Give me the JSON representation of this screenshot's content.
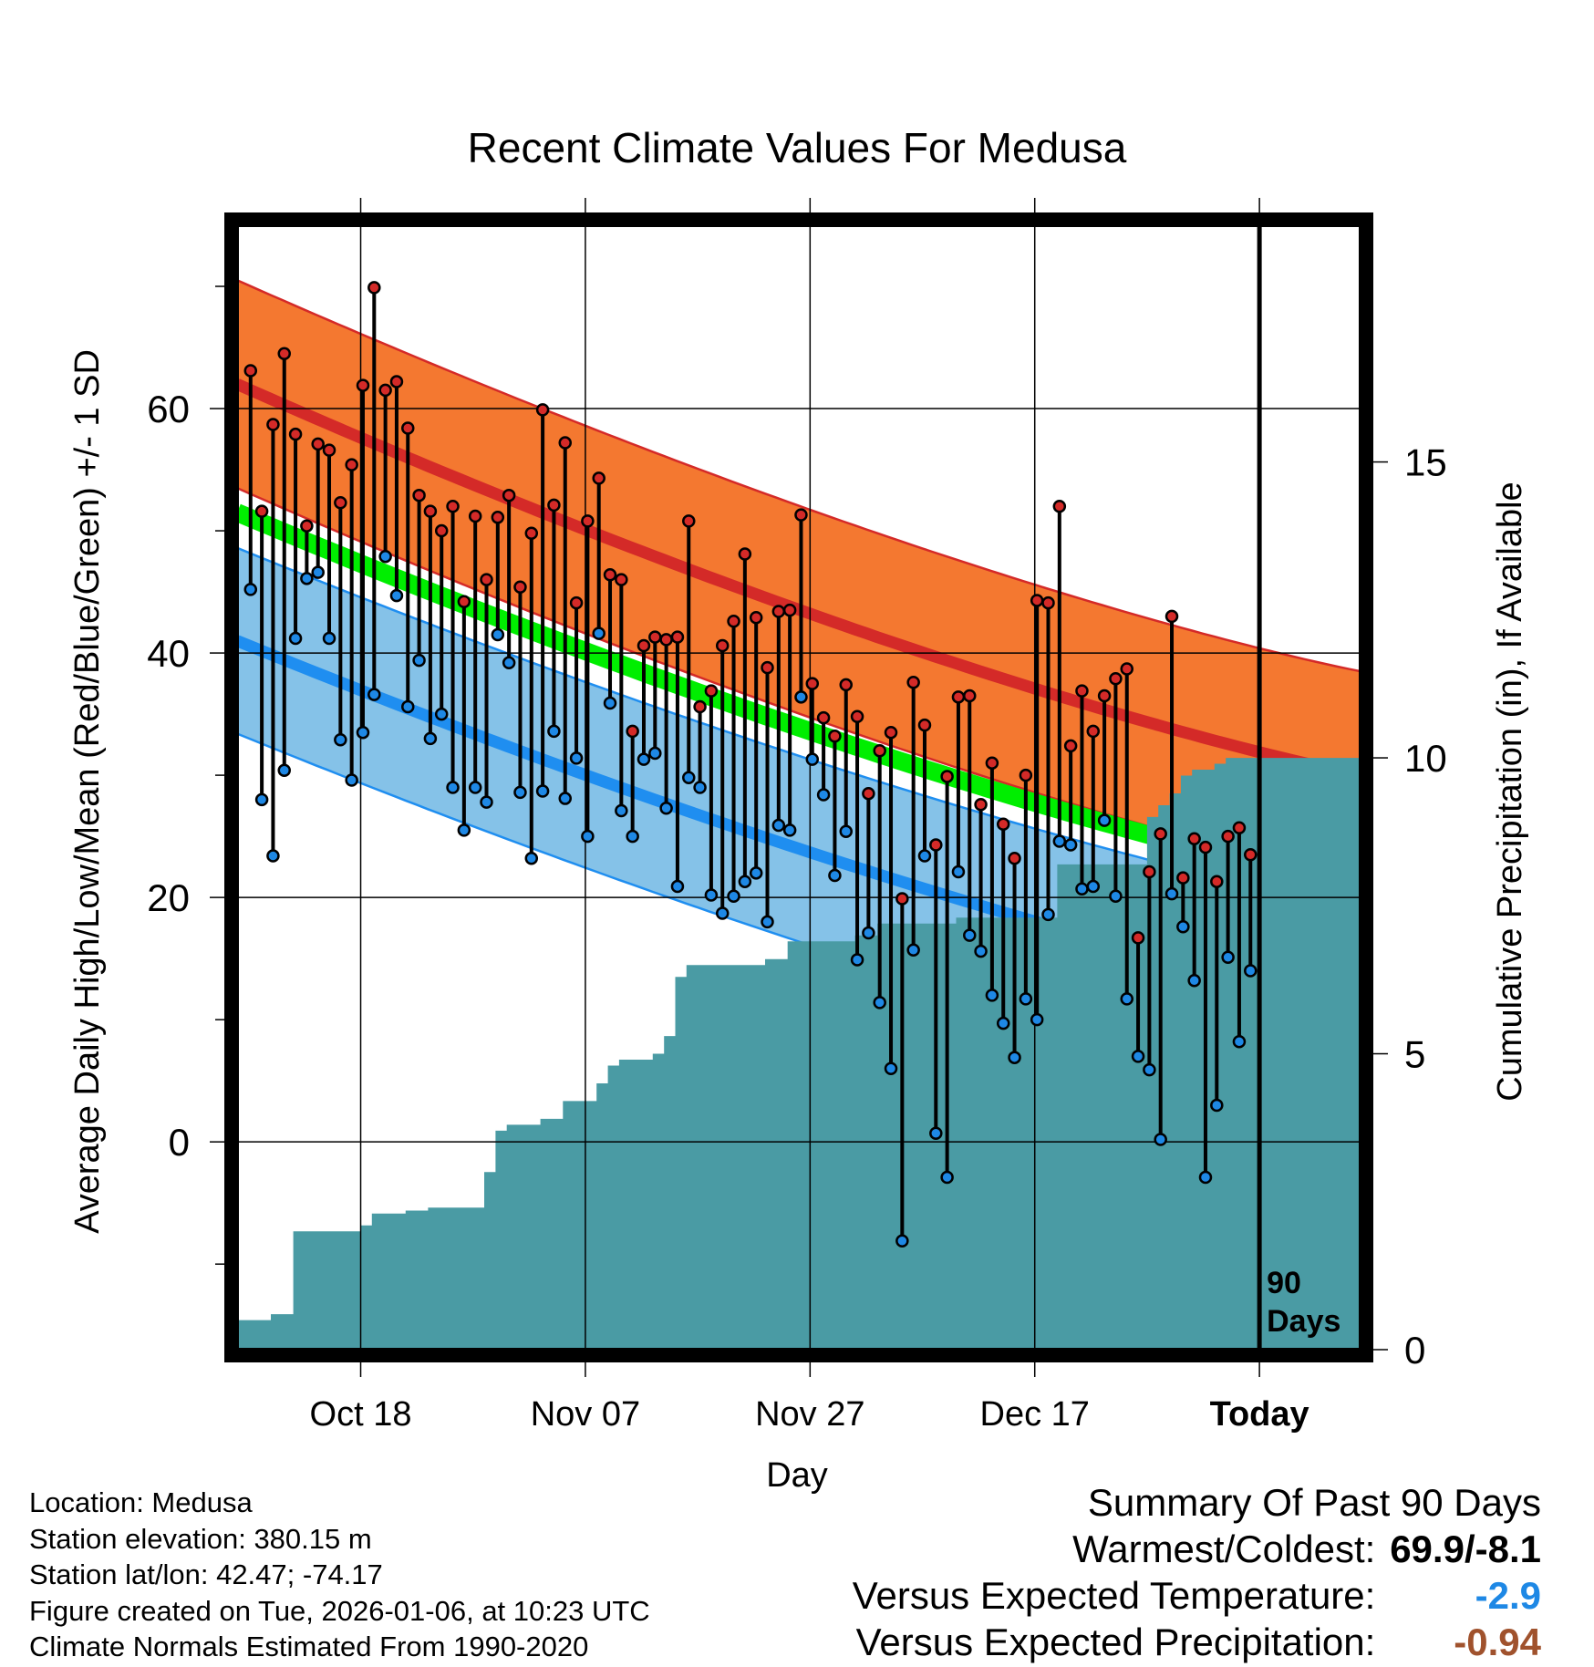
{
  "chart_data": {
    "type": "line",
    "title": "Recent Climate Values For Medusa",
    "xlabel": "Day",
    "ylabel": "Average Daily High/Low/Mean (Red/Blue/Green) +/- 1 SD",
    "y2label": "Cumulative Precipitation (in), If Available",
    "ylim": [
      -17,
      75
    ],
    "y2lim": [
      0,
      19
    ],
    "y_ticks": [
      "0",
      "20",
      "40",
      "60"
    ],
    "y_tick_values": [
      0,
      20,
      40,
      60
    ],
    "y2_ticks": [
      "0",
      "5",
      "10",
      "15"
    ],
    "y2_tick_values": [
      0,
      5,
      10,
      15
    ],
    "x_ticks": [
      "Oct 18",
      "Nov 07",
      "Nov 27",
      "Dec 17",
      "Today"
    ],
    "x_tick_days": [
      11,
      31,
      51,
      71,
      91
    ],
    "days_label": "90\nDays",
    "day_range": [
      0,
      100
    ],
    "normal_high": {
      "start": 62,
      "end": 30,
      "sd": 8.5
    },
    "normal_low": {
      "start": 41,
      "end": 11.5,
      "sd": 7.6
    },
    "normal_mean": {
      "start": 51.5,
      "end": 21
    },
    "highs": [
      63.1,
      51.6,
      58.7,
      64.5,
      57.9,
      50.4,
      57.1,
      56.6,
      52.3,
      55.4,
      61.9,
      69.9,
      61.5,
      62.2,
      58.4,
      52.9,
      51.6,
      50.0,
      52.0,
      44.2,
      51.2,
      46.0,
      51.1,
      52.9,
      45.4,
      49.8,
      59.9,
      52.1,
      57.2,
      44.1,
      50.8,
      54.3,
      46.4,
      46.0,
      33.6,
      40.6,
      41.3,
      41.1,
      41.3,
      50.8,
      35.6,
      36.9,
      40.6,
      42.6,
      48.1,
      42.9,
      38.8,
      43.4,
      43.5,
      51.3,
      37.5,
      34.7,
      33.2,
      37.4,
      34.8,
      28.5,
      32.0,
      33.5,
      19.9,
      37.6,
      34.1,
      24.3,
      29.9,
      36.4,
      36.5,
      27.6,
      31.0,
      26.0,
      23.2,
      30.0,
      44.3,
      44.1,
      52.0,
      32.4,
      36.9,
      33.6,
      36.5,
      37.9,
      38.7,
      16.7,
      22.1,
      25.2,
      43.0,
      21.6,
      24.8,
      24.1,
      21.3,
      25.0,
      25.7,
      23.5
    ],
    "lows": [
      45.2,
      28.0,
      23.4,
      30.4,
      41.2,
      46.1,
      46.6,
      41.2,
      32.9,
      29.6,
      33.5,
      36.6,
      47.9,
      44.7,
      35.6,
      39.4,
      33.0,
      35.0,
      29.0,
      25.5,
      29.0,
      27.8,
      41.5,
      39.2,
      28.6,
      23.2,
      28.7,
      33.6,
      28.1,
      31.4,
      25.0,
      41.6,
      35.9,
      27.1,
      25.0,
      31.3,
      31.8,
      27.3,
      20.9,
      29.8,
      29.0,
      20.2,
      18.7,
      20.1,
      21.3,
      22.0,
      18.0,
      25.9,
      25.5,
      36.4,
      31.3,
      28.4,
      21.8,
      25.4,
      14.9,
      17.1,
      11.4,
      6.0,
      -8.1,
      15.7,
      23.4,
      0.7,
      -2.9,
      22.1,
      16.9,
      15.6,
      12.0,
      9.7,
      6.9,
      11.7,
      10.0,
      18.6,
      24.6,
      24.3,
      20.7,
      20.9,
      26.3,
      20.1,
      11.7,
      7.0,
      5.9,
      0.2,
      20.3,
      17.6,
      13.2,
      -2.9,
      3.0,
      15.1,
      8.2,
      14.0
    ],
    "precip_cumulative": [
      0.5,
      0.5,
      0.5,
      0.6,
      0.6,
      2.0,
      2.0,
      2.0,
      2.0,
      2.0,
      2.0,
      2.1,
      2.3,
      2.3,
      2.3,
      2.35,
      2.35,
      2.4,
      2.4,
      2.4,
      2.4,
      2.4,
      3.0,
      3.7,
      3.8,
      3.8,
      3.8,
      3.9,
      3.9,
      4.2,
      4.2,
      4.2,
      4.5,
      4.8,
      4.9,
      4.9,
      4.9,
      5.0,
      5.3,
      6.3,
      6.5,
      6.5,
      6.5,
      6.5,
      6.5,
      6.5,
      6.5,
      6.6,
      6.6,
      6.9,
      6.9,
      6.9,
      6.9,
      6.9,
      6.9,
      7.0,
      7.0,
      7.2,
      7.2,
      7.2,
      7.2,
      7.2,
      7.2,
      7.2,
      7.3,
      7.3,
      7.3,
      7.3,
      7.3,
      7.3,
      7.3,
      7.3,
      7.3,
      8.2,
      8.2,
      8.2,
      8.2,
      8.2,
      8.2,
      8.2,
      8.2,
      9.0,
      9.2,
      9.4,
      9.7,
      9.8,
      9.8,
      9.9,
      10.0,
      10.0,
      10.0
    ]
  },
  "footer": {
    "location": "Location: Medusa",
    "elevation": "Station elevation: 380.15 m",
    "latlon": "Station lat/lon: 42.47; -74.17",
    "created": "Figure created on Tue, 2026-01-06, at 10:23 UTC",
    "normals": "Climate Normals Estimated From 1990-2020"
  },
  "summary": {
    "title": "Summary Of Past 90 Days",
    "warm_cold_label": "Warmest/Coldest:",
    "warm_cold_value": "69.9/-8.1",
    "temp_label": "Versus Expected Temperature:",
    "temp_value": "-2.9",
    "precip_label": "Versus Expected Precipitation:",
    "precip_value": "-0.94"
  },
  "colors": {
    "high_band": "#f47830",
    "high_line": "#d42a28",
    "low_band": "#85c2e8",
    "low_line": "#1f8ef0",
    "mean_line": "#00ee00",
    "dark_red_band": "#9b1116",
    "precip_fill": "#4a9ba4",
    "high_marker": "#d42a28",
    "low_marker": "#1e88e5",
    "temp_value_color": "#1e88e5",
    "precip_value_color": "#a0522d"
  }
}
